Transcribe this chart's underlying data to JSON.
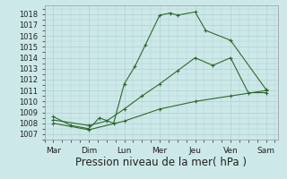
{
  "x_labels": [
    "Mar",
    "Dim",
    "Lun",
    "Mer",
    "Jeu",
    "Ven",
    "Sam"
  ],
  "x_positions": [
    0,
    1,
    2,
    3,
    4,
    5,
    6
  ],
  "line1_x": [
    0,
    0.5,
    1,
    1.3,
    1.7,
    2,
    2.3,
    2.6,
    3,
    3.3,
    3.5,
    4,
    4.3,
    5,
    6
  ],
  "line1_y": [
    1008.6,
    1007.8,
    1007.5,
    1008.5,
    1008.0,
    1011.6,
    1013.2,
    1015.2,
    1017.9,
    1018.1,
    1017.9,
    1018.2,
    1016.5,
    1015.6,
    1011.1
  ],
  "line2_x": [
    0,
    1,
    1.5,
    2,
    2.5,
    3,
    3.5,
    4,
    4.5,
    5,
    5.5,
    6
  ],
  "line2_y": [
    1008.3,
    1007.8,
    1008.2,
    1009.3,
    1010.5,
    1011.6,
    1012.8,
    1014.0,
    1013.3,
    1014.0,
    1010.8,
    1010.8
  ],
  "line3_x": [
    0,
    1,
    2,
    3,
    4,
    5,
    6
  ],
  "line3_y": [
    1008.0,
    1007.4,
    1008.2,
    1009.3,
    1010.0,
    1010.5,
    1011.0
  ],
  "ylim_min": 1006.5,
  "ylim_max": 1018.8,
  "yticks": [
    1007,
    1008,
    1009,
    1010,
    1011,
    1012,
    1013,
    1014,
    1015,
    1016,
    1017,
    1018
  ],
  "line_color": "#2d6a2d",
  "bg_color": "#cde8e8",
  "grid_color": "#b0d0d0",
  "xlabel": "Pression niveau de la mer( hPa )",
  "xlabel_fontsize": 8.5
}
